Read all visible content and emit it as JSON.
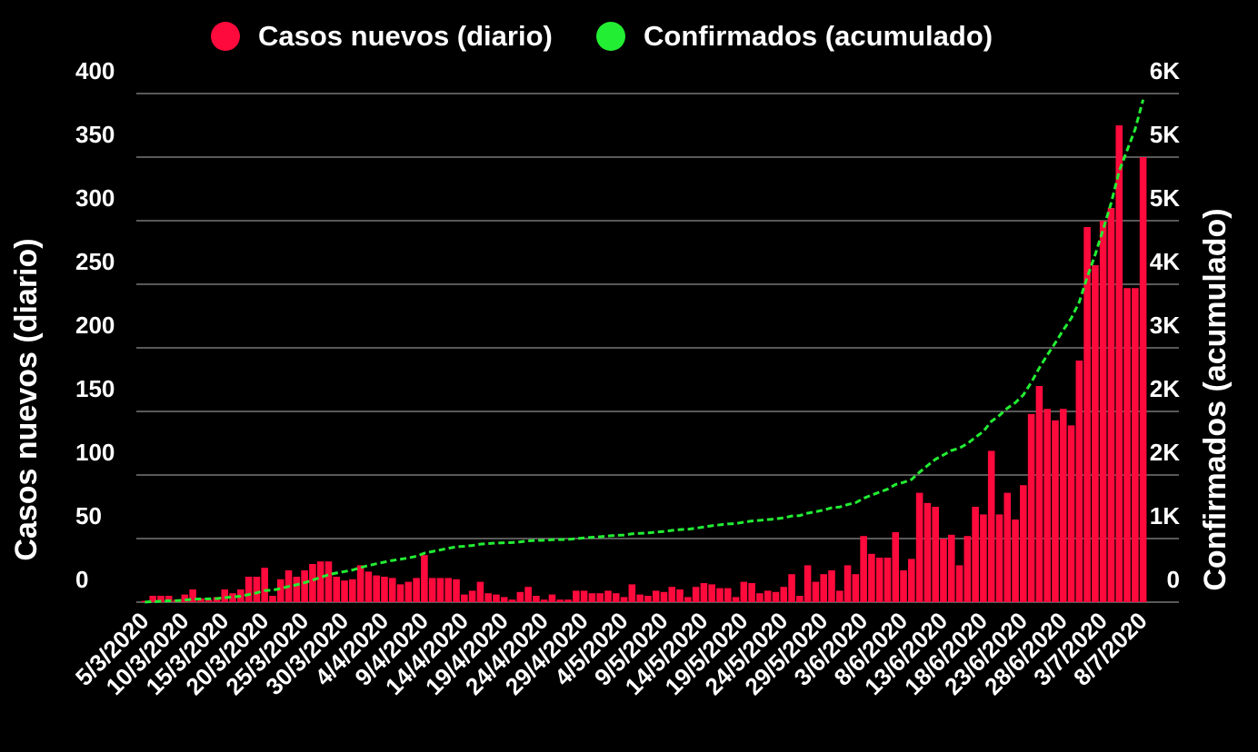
{
  "chart_data": {
    "type": "bar-line",
    "categories": [
      "5/3/2020",
      null,
      null,
      null,
      null,
      "10/3/2020",
      null,
      null,
      null,
      null,
      "15/3/2020",
      null,
      null,
      null,
      null,
      "20/3/2020",
      null,
      null,
      null,
      null,
      "25/3/2020",
      null,
      null,
      null,
      null,
      "30/3/2020",
      null,
      null,
      null,
      null,
      "4/4/2020",
      null,
      null,
      null,
      null,
      "9/4/2020",
      null,
      null,
      null,
      null,
      "14/4/2020",
      null,
      null,
      null,
      null,
      "19/4/2020",
      null,
      null,
      null,
      null,
      "24/4/2020",
      null,
      null,
      null,
      null,
      "29/4/2020",
      null,
      null,
      null,
      null,
      "4/5/2020",
      null,
      null,
      null,
      null,
      "9/5/2020",
      null,
      null,
      null,
      null,
      "14/5/2020",
      null,
      null,
      null,
      null,
      "19/5/2020",
      null,
      null,
      null,
      null,
      "24/5/2020",
      null,
      null,
      null,
      null,
      "29/5/2020",
      null,
      null,
      null,
      null,
      "3/6/2020",
      null,
      null,
      null,
      null,
      "8/6/2020",
      null,
      null,
      null,
      null,
      "13/6/2020",
      null,
      null,
      null,
      null,
      "18/6/2020",
      null,
      null,
      null,
      null,
      "23/6/2020",
      null,
      null,
      null,
      null,
      "28/6/2020",
      null,
      null,
      null,
      null,
      "3/7/2020",
      null,
      null,
      null,
      null,
      "8/7/2020"
    ],
    "series": [
      {
        "name": "Casos nuevos (diario)",
        "color": "#ff0a3c",
        "values": [
          1,
          5,
          5,
          5,
          2,
          6,
          10,
          3,
          2,
          4,
          10,
          7,
          10,
          20,
          20,
          27,
          5,
          18,
          25,
          20,
          25,
          30,
          32,
          32,
          20,
          17,
          18,
          29,
          24,
          21,
          20,
          19,
          14,
          16,
          19,
          37,
          19,
          19,
          19,
          18,
          6,
          9,
          16,
          7,
          6,
          4,
          2,
          8,
          12,
          5,
          2,
          6,
          2,
          2,
          9,
          9,
          7,
          7,
          9,
          7,
          4,
          14,
          6,
          5,
          9,
          8,
          12,
          10,
          4,
          12,
          15,
          14,
          11,
          11,
          4,
          16,
          15,
          7,
          9,
          8,
          12,
          22,
          5,
          29,
          16,
          22,
          25,
          9,
          29,
          22,
          52,
          38,
          35,
          35,
          55,
          25,
          34,
          86,
          78,
          75,
          50,
          53,
          29,
          52,
          75,
          69,
          119,
          69,
          86,
          65,
          92,
          148,
          170,
          152,
          143,
          152,
          139,
          190,
          295,
          265,
          300,
          310,
          375,
          247,
          247,
          350
        ]
      },
      {
        "name": "Confirmados (acumulado)",
        "color": "#22ee33",
        "axis": "y2",
        "values": [
          1,
          6,
          11,
          16,
          18,
          24,
          34,
          37,
          39,
          43,
          53,
          60,
          70,
          90,
          110,
          137,
          142,
          160,
          185,
          205,
          230,
          260,
          292,
          324,
          344,
          361,
          379,
          408,
          432,
          453,
          473,
          492,
          506,
          522,
          541,
          578,
          597,
          616,
          635,
          653,
          659,
          668,
          684,
          691,
          697,
          701,
          703,
          711,
          723,
          728,
          730,
          736,
          738,
          740,
          749,
          758,
          765,
          772,
          781,
          788,
          792,
          806,
          812,
          817,
          826,
          834,
          846,
          856,
          860,
          872,
          887,
          901,
          912,
          923,
          927,
          943,
          958,
          965,
          974,
          982,
          994,
          1016,
          1021,
          1050,
          1066,
          1088,
          1113,
          1122,
          1151,
          1173,
          1225,
          1263,
          1298,
          1333,
          1388,
          1413,
          1447,
          1533,
          1611,
          1686,
          1736,
          1789,
          1818,
          1870,
          1945,
          2014,
          2133,
          2202,
          2288,
          2353,
          2445,
          2593,
          2763,
          2915,
          3058,
          3210,
          3349,
          3539,
          3834,
          4099,
          4399,
          4709,
          5084,
          5331,
          5578,
          5928
        ]
      }
    ],
    "ylabel": "Casos nuevos (diario)",
    "y2label": "Confirmados (acumulado)",
    "ylim": [
      0,
      400
    ],
    "yticks": [
      0,
      50,
      100,
      150,
      200,
      250,
      300,
      350,
      400
    ],
    "y2lim": [
      0,
      6000
    ],
    "y2ticks": [
      0,
      {
        "value": 750,
        "label": "1K"
      },
      {
        "value": 1500,
        "label": "2K"
      },
      {
        "value": 2250,
        "label": "2K"
      },
      {
        "value": 3000,
        "label": "3K"
      },
      {
        "value": 3750,
        "label": "4K"
      },
      {
        "value": 4500,
        "label": "5K"
      },
      {
        "value": 5250,
        "label": "5K"
      },
      {
        "value": 6000,
        "label": "6K"
      }
    ],
    "grid": true,
    "legend": "top"
  }
}
